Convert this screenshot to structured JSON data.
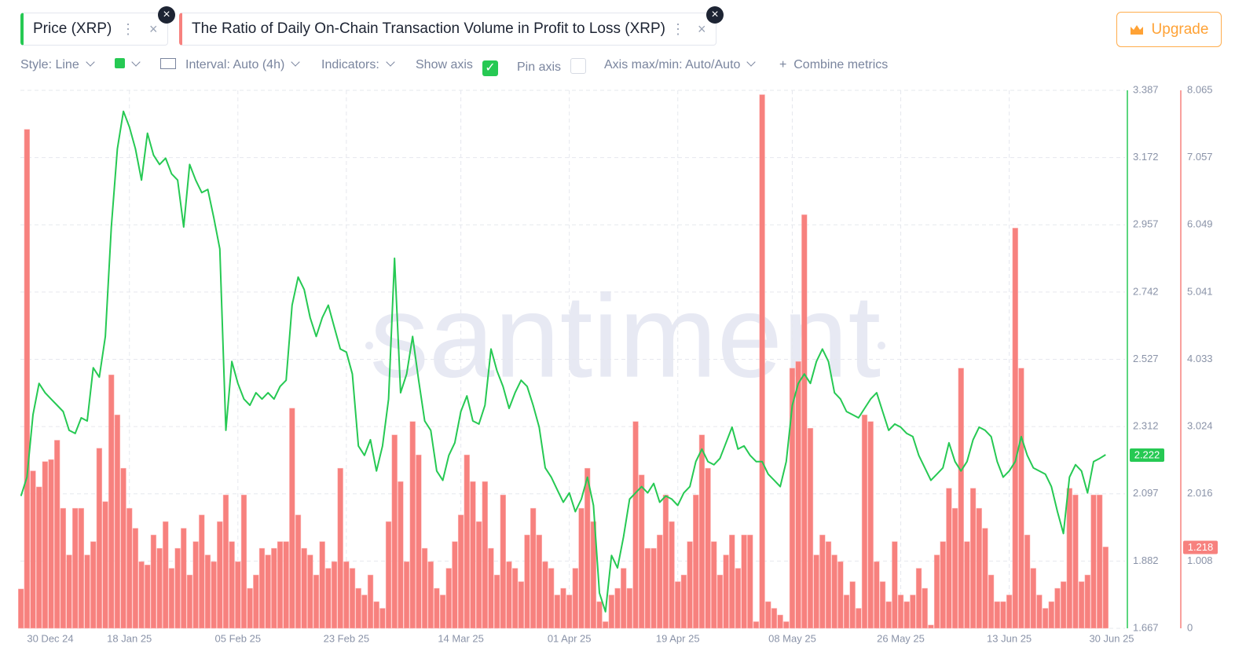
{
  "ui": {
    "tabs": [
      "Price (XRP)",
      "The Ratio of Daily On-Chain Transaction Volume in Profit to Loss (XRP)"
    ],
    "upgrade": "Upgrade",
    "toolbar": {
      "style": "Style: Line",
      "interval": "Interval: Auto (4h)",
      "indicators": "Indicators:",
      "show_axis": "Show axis",
      "pin_axis": "Pin axis",
      "axis_minmax": "Axis max/min: Auto/Auto",
      "combine": "Combine metrics"
    },
    "watermark": "santiment"
  },
  "chart_data": {
    "type": "combo",
    "grid": true,
    "x": [
      "2024-12-31",
      "2025-01-01",
      "2025-01-02",
      "2025-01-03",
      "2025-01-04",
      "2025-01-05",
      "2025-01-06",
      "2025-01-07",
      "2025-01-08",
      "2025-01-09",
      "2025-01-10",
      "2025-01-11",
      "2025-01-12",
      "2025-01-13",
      "2025-01-14",
      "2025-01-15",
      "2025-01-16",
      "2025-01-17",
      "2025-01-18",
      "2025-01-19",
      "2025-01-20",
      "2025-01-21",
      "2025-01-22",
      "2025-01-23",
      "2025-01-24",
      "2025-01-25",
      "2025-01-26",
      "2025-01-27",
      "2025-01-28",
      "2025-01-29",
      "2025-01-30",
      "2025-01-31",
      "2025-02-01",
      "2025-02-02",
      "2025-02-03",
      "2025-02-04",
      "2025-02-05",
      "2025-02-06",
      "2025-02-07",
      "2025-02-08",
      "2025-02-09",
      "2025-02-10",
      "2025-02-11",
      "2025-02-12",
      "2025-02-13",
      "2025-02-14",
      "2025-02-15",
      "2025-02-16",
      "2025-02-17",
      "2025-02-18",
      "2025-02-19",
      "2025-02-20",
      "2025-02-21",
      "2025-02-22",
      "2025-02-23",
      "2025-02-24",
      "2025-02-25",
      "2025-02-26",
      "2025-02-27",
      "2025-02-28",
      "2025-03-01",
      "2025-03-02",
      "2025-03-03",
      "2025-03-04",
      "2025-03-05",
      "2025-03-06",
      "2025-03-07",
      "2025-03-08",
      "2025-03-09",
      "2025-03-10",
      "2025-03-11",
      "2025-03-12",
      "2025-03-13",
      "2025-03-14",
      "2025-03-15",
      "2025-03-16",
      "2025-03-17",
      "2025-03-18",
      "2025-03-19",
      "2025-03-20",
      "2025-03-21",
      "2025-03-22",
      "2025-03-23",
      "2025-03-24",
      "2025-03-25",
      "2025-03-26",
      "2025-03-27",
      "2025-03-28",
      "2025-03-29",
      "2025-03-30",
      "2025-03-31",
      "2025-04-01",
      "2025-04-02",
      "2025-04-03",
      "2025-04-04",
      "2025-04-05",
      "2025-04-06",
      "2025-04-07",
      "2025-04-08",
      "2025-04-09",
      "2025-04-10",
      "2025-04-11",
      "2025-04-12",
      "2025-04-13",
      "2025-04-14",
      "2025-04-15",
      "2025-04-16",
      "2025-04-17",
      "2025-04-18",
      "2025-04-19",
      "2025-04-20",
      "2025-04-21",
      "2025-04-22",
      "2025-04-23",
      "2025-04-24",
      "2025-04-25",
      "2025-04-26",
      "2025-04-27",
      "2025-04-28",
      "2025-04-29",
      "2025-04-30",
      "2025-05-01",
      "2025-05-02",
      "2025-05-03",
      "2025-05-04",
      "2025-05-05",
      "2025-05-06",
      "2025-05-07",
      "2025-05-08",
      "2025-05-09",
      "2025-05-10",
      "2025-05-11",
      "2025-05-12",
      "2025-05-13",
      "2025-05-14",
      "2025-05-15",
      "2025-05-16",
      "2025-05-17",
      "2025-05-18",
      "2025-05-19",
      "2025-05-20",
      "2025-05-21",
      "2025-05-22",
      "2025-05-23",
      "2025-05-24",
      "2025-05-25",
      "2025-05-26",
      "2025-05-27",
      "2025-05-28",
      "2025-05-29",
      "2025-05-30",
      "2025-05-31",
      "2025-06-01",
      "2025-06-02",
      "2025-06-03",
      "2025-06-04",
      "2025-06-05",
      "2025-06-06",
      "2025-06-07",
      "2025-06-08",
      "2025-06-09",
      "2025-06-10",
      "2025-06-11",
      "2025-06-12",
      "2025-06-13",
      "2025-06-14",
      "2025-06-15",
      "2025-06-16",
      "2025-06-17",
      "2025-06-18",
      "2025-06-19",
      "2025-06-20",
      "2025-06-21",
      "2025-06-22",
      "2025-06-23",
      "2025-06-24",
      "2025-06-25",
      "2025-06-26",
      "2025-06-27",
      "2025-06-28",
      "2025-06-29"
    ],
    "xlim": [
      "2024-12-30",
      "2025-06-30"
    ],
    "xticks": [
      {
        "value": "2024-12-30",
        "label": "30 Dec 24"
      },
      {
        "value": "2025-01-18",
        "label": "18 Jan 25"
      },
      {
        "value": "2025-02-05",
        "label": "05 Feb 25"
      },
      {
        "value": "2025-02-23",
        "label": "23 Feb 25"
      },
      {
        "value": "2025-03-14",
        "label": "14 Mar 25"
      },
      {
        "value": "2025-04-01",
        "label": "01 Apr 25"
      },
      {
        "value": "2025-04-19",
        "label": "19 Apr 25"
      },
      {
        "value": "2025-05-08",
        "label": "08 May 25"
      },
      {
        "value": "2025-05-26",
        "label": "26 May 25"
      },
      {
        "value": "2025-06-13",
        "label": "13 Jun 25"
      },
      {
        "value": "2025-06-30",
        "label": "30 Jun 25"
      }
    ],
    "ylim": [
      1.667,
      3.387
    ],
    "yticks": [
      1.667,
      1.882,
      2.097,
      2.312,
      2.527,
      2.742,
      2.957,
      3.172,
      3.387
    ],
    "y2lim": [
      0,
      8.065
    ],
    "y2ticks": [
      0,
      1.008,
      2.016,
      3.024,
      4.033,
      5.041,
      6.049,
      7.057,
      8.065
    ],
    "series": [
      {
        "name": "Price (XRP)",
        "type": "line",
        "axis": "y",
        "color": "#26c953",
        "current_value": 2.222,
        "values": [
          2.09,
          2.15,
          2.35,
          2.45,
          2.42,
          2.4,
          2.38,
          2.36,
          2.3,
          2.29,
          2.34,
          2.33,
          2.5,
          2.47,
          2.6,
          2.95,
          3.2,
          3.32,
          3.27,
          3.2,
          3.1,
          3.25,
          3.18,
          3.15,
          3.17,
          3.12,
          3.1,
          2.95,
          3.15,
          3.1,
          3.06,
          3.07,
          2.98,
          2.88,
          2.3,
          2.52,
          2.45,
          2.4,
          2.38,
          2.42,
          2.4,
          2.42,
          2.4,
          2.44,
          2.46,
          2.7,
          2.79,
          2.75,
          2.66,
          2.6,
          2.66,
          2.7,
          2.63,
          2.56,
          2.55,
          2.48,
          2.25,
          2.22,
          2.27,
          2.17,
          2.25,
          2.4,
          2.85,
          2.42,
          2.48,
          2.6,
          2.46,
          2.33,
          2.3,
          2.17,
          2.14,
          2.22,
          2.26,
          2.36,
          2.41,
          2.33,
          2.32,
          2.38,
          2.56,
          2.49,
          2.44,
          2.37,
          2.42,
          2.46,
          2.44,
          2.38,
          2.31,
          2.18,
          2.15,
          2.11,
          2.07,
          2.1,
          2.04,
          2.08,
          2.15,
          2.06,
          1.78,
          1.72,
          1.9,
          1.86,
          1.96,
          2.08,
          2.1,
          2.12,
          2.1,
          2.13,
          2.07,
          2.09,
          2.08,
          2.06,
          2.1,
          2.12,
          2.2,
          2.24,
          2.2,
          2.19,
          2.21,
          2.26,
          2.31,
          2.24,
          2.25,
          2.22,
          2.2,
          2.2,
          2.16,
          2.14,
          2.12,
          2.2,
          2.38,
          2.45,
          2.48,
          2.45,
          2.52,
          2.56,
          2.52,
          2.42,
          2.4,
          2.36,
          2.35,
          2.34,
          2.37,
          2.4,
          2.42,
          2.36,
          2.3,
          2.32,
          2.31,
          2.29,
          2.28,
          2.22,
          2.18,
          2.14,
          2.16,
          2.18,
          2.26,
          2.2,
          2.17,
          2.2,
          2.27,
          2.31,
          2.3,
          2.28,
          2.2,
          2.15,
          2.17,
          2.2,
          2.28,
          2.22,
          2.18,
          2.17,
          2.16,
          2.12,
          2.04,
          1.97,
          2.15,
          2.19,
          2.17,
          2.1,
          2.2,
          2.21,
          2.222
        ]
      },
      {
        "name": "The Ratio of Daily On-Chain Transaction Volume in Profit to Loss (XRP)",
        "type": "bar",
        "axis": "y2",
        "color": "#f7817e",
        "current_value": 1.218,
        "values": [
          0.59,
          7.48,
          2.36,
          2.12,
          2.5,
          2.53,
          2.82,
          1.8,
          1.1,
          1.8,
          1.8,
          1.1,
          1.3,
          2.7,
          1.9,
          3.8,
          3.2,
          2.4,
          1.8,
          1.5,
          1.0,
          0.95,
          1.4,
          1.2,
          1.6,
          0.9,
          1.2,
          1.5,
          0.8,
          1.3,
          1.7,
          1.1,
          1.0,
          1.6,
          2.0,
          1.3,
          1.0,
          2.0,
          0.6,
          0.8,
          1.2,
          1.1,
          1.2,
          1.3,
          1.3,
          3.3,
          1.7,
          1.2,
          1.1,
          0.8,
          1.3,
          0.9,
          1.0,
          2.4,
          1.0,
          0.9,
          0.6,
          0.5,
          0.8,
          0.4,
          0.3,
          1.6,
          2.9,
          2.2,
          1.0,
          3.1,
          2.6,
          1.2,
          1.0,
          0.6,
          0.5,
          0.9,
          1.3,
          1.7,
          2.6,
          2.2,
          1.6,
          2.2,
          1.2,
          0.8,
          2.0,
          1.0,
          0.9,
          0.7,
          1.4,
          1.8,
          1.4,
          1.0,
          0.9,
          0.5,
          0.6,
          0.5,
          0.9,
          1.8,
          2.4,
          1.6,
          0.4,
          0.1,
          0.5,
          0.6,
          0.9,
          0.6,
          3.1,
          2.3,
          1.2,
          1.2,
          1.4,
          2.0,
          1.6,
          0.7,
          0.8,
          1.3,
          2.0,
          2.9,
          2.4,
          1.3,
          0.8,
          1.1,
          1.4,
          0.9,
          1.4,
          1.4,
          0.1,
          8.0,
          0.4,
          0.3,
          0.2,
          0.1,
          3.9,
          4.0,
          6.2,
          3.0,
          1.1,
          1.4,
          1.3,
          1.1,
          1.0,
          0.5,
          0.7,
          0.3,
          3.2,
          3.1,
          1.0,
          0.7,
          0.4,
          1.3,
          0.5,
          0.4,
          0.5,
          0.9,
          0.6,
          0.05,
          1.1,
          1.3,
          2.1,
          1.8,
          3.9,
          1.3,
          2.1,
          1.8,
          1.5,
          0.8,
          0.4,
          0.4,
          0.5,
          6.0,
          3.9,
          1.4,
          0.9,
          0.5,
          0.3,
          0.4,
          0.6,
          0.7,
          2.1,
          2.0,
          0.7,
          0.8,
          2.0,
          2.0,
          1.22
        ]
      }
    ]
  }
}
